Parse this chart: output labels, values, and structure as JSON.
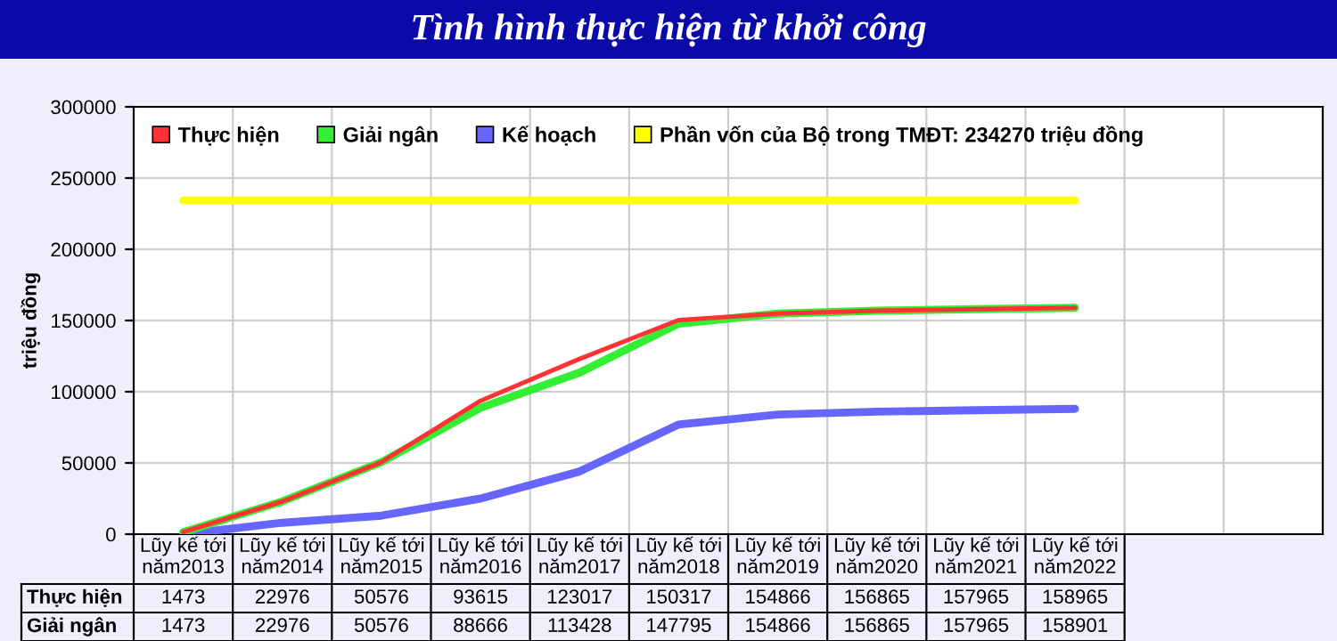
{
  "chart_data": {
    "type": "line",
    "title": "Tình hình thực hiện từ khởi công",
    "ylabel": "triệu đồng",
    "categories": [
      "Lũy kế tới\nnăm2013",
      "Lũy kế tới\nnăm2014",
      "Lũy kế tới\nnăm2015",
      "Lũy kế tới\nnăm2016",
      "Lũy kế tới\nnăm2017",
      "Lũy kế tới\nnăm2018",
      "Lũy kế tới\nnăm2019",
      "Lũy kế tới\nnăm2020",
      "Lũy kế tới\nnăm2021",
      "Lũy kế tới\nnăm2022",
      null,
      null
    ],
    "series": [
      {
        "name": "Thực hiện",
        "color": "#ff3333",
        "values": [
          1473,
          22976,
          50576,
          93615,
          123017,
          150317,
          154866,
          156865,
          157965,
          158965,
          null,
          null
        ],
        "value_labels": [
          "1473",
          "22976",
          "50576",
          "93615",
          "123017",
          "150317",
          "154866",
          "156865",
          "157965",
          "158965",
          null,
          null
        ]
      },
      {
        "name": "Giải ngân",
        "color": "#33ee33",
        "values": [
          1473,
          22976,
          50576,
          88666,
          113428,
          147795,
          154866,
          156865,
          157965,
          158901,
          null,
          null
        ],
        "value_labels": [
          "1473",
          "22976",
          "50576",
          "88666",
          "113428",
          "147795",
          "154866",
          "156865",
          "157965",
          "158901",
          null,
          null
        ]
      },
      {
        "name": "Kế hoạch",
        "color": "#6666ff",
        "values": [
          0,
          8000,
          13000,
          25000,
          44000,
          77000,
          84000,
          86000,
          87000,
          88000,
          null,
          null
        ]
      },
      {
        "name": "Phần vốn của Bộ trong TMĐT: 234270 triệu đồng",
        "color": "#ffff00",
        "values": [
          234270,
          234270,
          234270,
          234270,
          234270,
          234270,
          234270,
          234270,
          234270,
          234270,
          null,
          null
        ]
      }
    ],
    "ylim": [
      0,
      300000
    ],
    "yticks": [
      0,
      50000,
      100000,
      150000,
      200000,
      250000,
      300000
    ],
    "grid": true,
    "legend": "top",
    "marker": "none",
    "line_style": "solid"
  }
}
